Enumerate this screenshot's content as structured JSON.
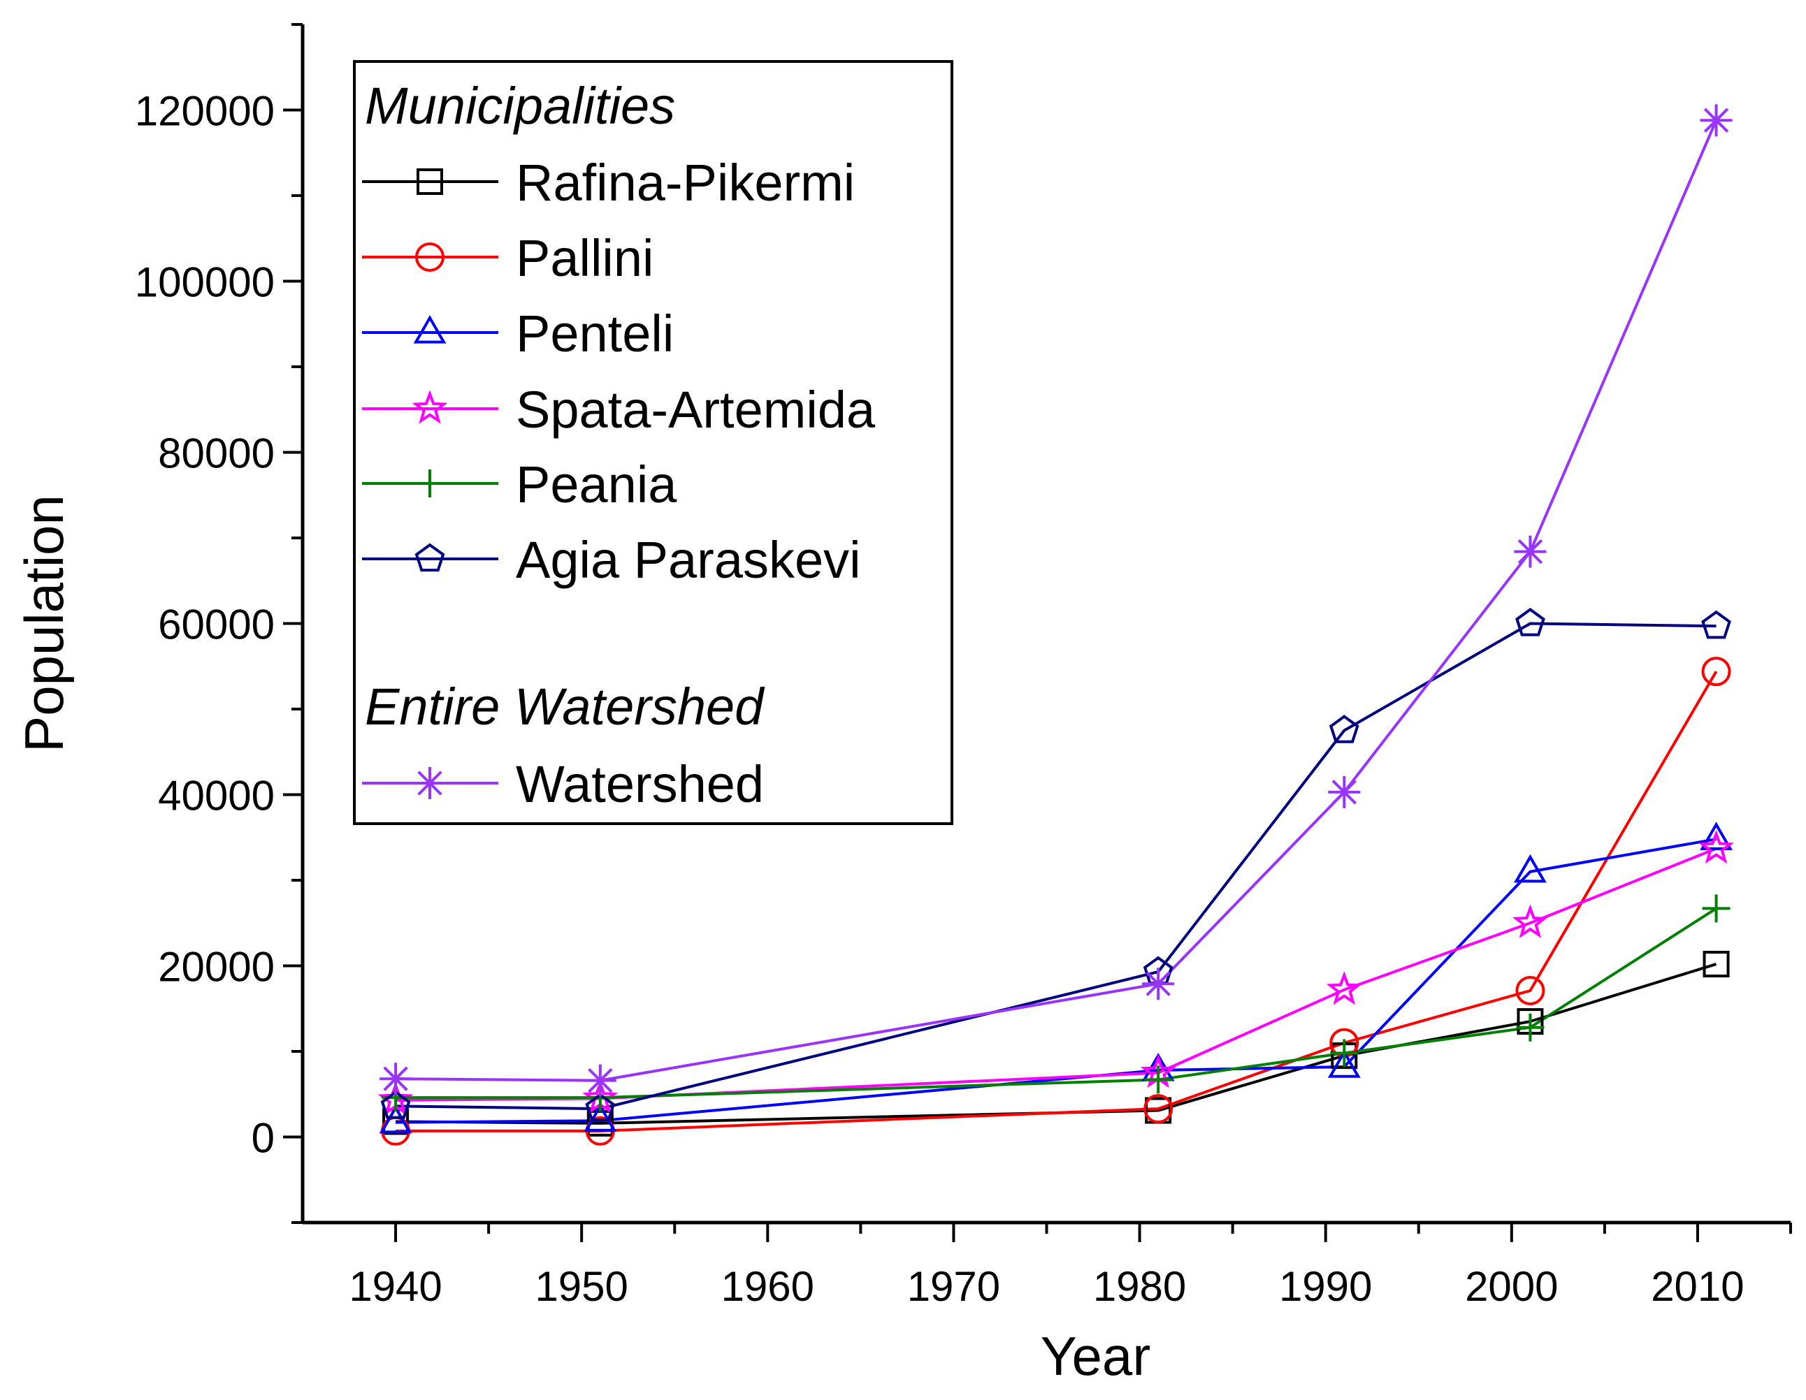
{
  "chart_data": {
    "type": "line",
    "title": "",
    "xlabel": "Year",
    "ylabel": "Population",
    "xlim": [
      1935,
      2015
    ],
    "ylim": [
      -10000,
      130000
    ],
    "x_ticks": [
      1940,
      1950,
      1960,
      1970,
      1980,
      1990,
      2000,
      2010
    ],
    "y_ticks": [
      0,
      20000,
      40000,
      60000,
      80000,
      100000,
      120000
    ],
    "x_tick_labels": [
      "1940",
      "1950",
      "1960",
      "1970",
      "1980",
      "1990",
      "2000",
      "2010"
    ],
    "y_tick_labels": [
      "0",
      "20000",
      "40000",
      "60000",
      "80000",
      "100000",
      "120000"
    ],
    "x": [
      1940,
      1951,
      1981,
      1991,
      2001,
      2011
    ],
    "grid": false,
    "legend_position": "top-left",
    "legend_groups": {
      "municipalities": "Municipalities",
      "watershed": "Entire Watershed"
    },
    "series": [
      {
        "name": "Rafina-Pikermi",
        "group": "municipalities",
        "color": "#000000",
        "marker": "square",
        "values": [
          1800,
          1600,
          3100,
          9500,
          13500,
          20200
        ]
      },
      {
        "name": "Pallini",
        "group": "municipalities",
        "color": "#ff0000",
        "marker": "circle",
        "values": [
          700,
          700,
          3300,
          11000,
          17100,
          54400
        ]
      },
      {
        "name": "Penteli",
        "group": "municipalities",
        "color": "#0000ff",
        "marker": "triangle",
        "values": [
          1700,
          1900,
          7800,
          8200,
          31000,
          34800
        ]
      },
      {
        "name": "Spata-Artemida",
        "group": "municipalities",
        "color": "#ff00ff",
        "marker": "star",
        "values": [
          4300,
          4500,
          7500,
          17200,
          25000,
          33700
        ]
      },
      {
        "name": "Peania",
        "group": "municipalities",
        "color": "#008000",
        "marker": "plus",
        "values": [
          4600,
          4600,
          6700,
          9800,
          12800,
          26700
        ]
      },
      {
        "name": "Agia Paraskevi",
        "group": "municipalities",
        "color": "#000080",
        "marker": "pentagon",
        "values": [
          3600,
          3300,
          19300,
          47500,
          60000,
          59700
        ]
      },
      {
        "name": "Watershed",
        "group": "watershed",
        "color": "#9933ff",
        "marker": "asterisk",
        "values": [
          6800,
          6600,
          17900,
          40300,
          68400,
          118800
        ]
      }
    ]
  }
}
